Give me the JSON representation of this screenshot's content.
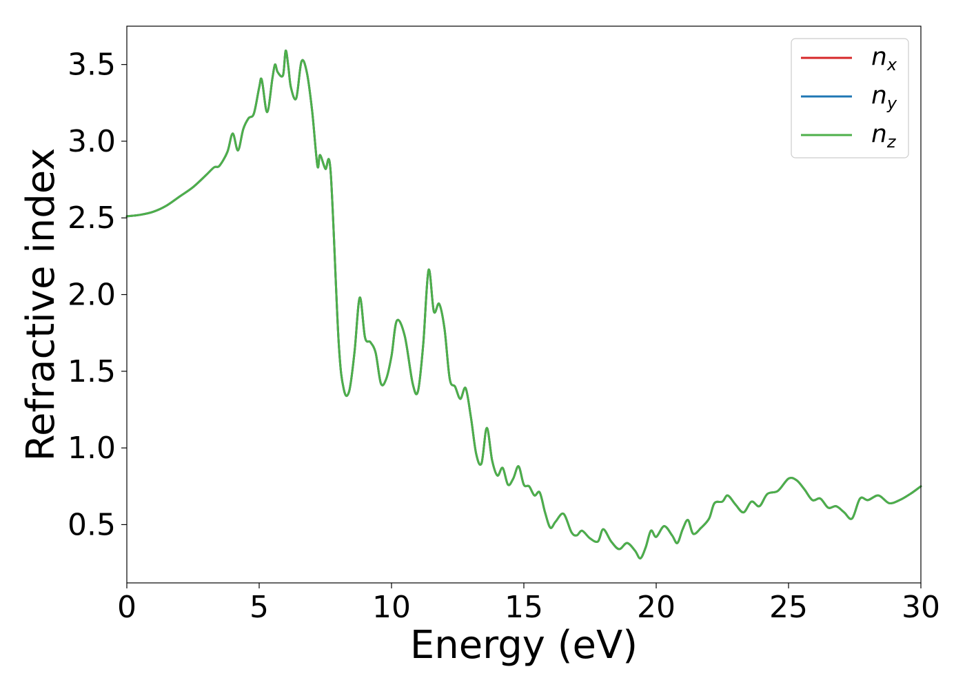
{
  "chart_data": {
    "type": "line",
    "title": "",
    "xlabel": "Energy (eV)",
    "ylabel": "Refractive index",
    "xlim": [
      0,
      30
    ],
    "ylim": [
      0.12,
      3.75
    ],
    "xticks": [
      "0",
      "5",
      "10",
      "15",
      "20",
      "25",
      "30"
    ],
    "yticks": [
      "0.5",
      "1.0",
      "1.5",
      "2.0",
      "2.5",
      "3.0",
      "3.5"
    ],
    "grid": false,
    "legend_position": "top-right",
    "x": [
      0,
      0.5,
      1.0,
      1.5,
      2.0,
      2.5,
      3.0,
      3.3,
      3.5,
      3.8,
      4.0,
      4.2,
      4.4,
      4.6,
      4.8,
      5.0,
      5.1,
      5.3,
      5.5,
      5.6,
      5.7,
      5.9,
      6.0,
      6.1,
      6.2,
      6.4,
      6.6,
      6.8,
      7.0,
      7.2,
      7.3,
      7.5,
      7.7,
      8.0,
      8.2,
      8.4,
      8.6,
      8.8,
      9.0,
      9.2,
      9.4,
      9.6,
      9.8,
      10.0,
      10.2,
      10.5,
      10.8,
      11.0,
      11.2,
      11.4,
      11.6,
      11.8,
      12.0,
      12.2,
      12.4,
      12.6,
      12.8,
      13.0,
      13.2,
      13.4,
      13.6,
      13.8,
      14.0,
      14.2,
      14.4,
      14.6,
      14.8,
      15.0,
      15.2,
      15.4,
      15.6,
      15.8,
      16.0,
      16.2,
      16.5,
      16.8,
      17.0,
      17.2,
      17.5,
      17.8,
      18.0,
      18.3,
      18.6,
      18.9,
      19.2,
      19.4,
      19.6,
      19.8,
      20.0,
      20.3,
      20.6,
      20.8,
      21.0,
      21.2,
      21.4,
      21.7,
      22.0,
      22.2,
      22.5,
      22.7,
      23.0,
      23.3,
      23.6,
      23.9,
      24.2,
      24.6,
      25.0,
      25.3,
      25.6,
      25.9,
      26.2,
      26.5,
      26.8,
      27.1,
      27.4,
      27.7,
      28.0,
      28.4,
      28.8,
      29.2,
      29.6,
      30.0
    ],
    "series": [
      {
        "name": "n_x",
        "color": "#d62728",
        "values": [
          2.51,
          2.52,
          2.54,
          2.58,
          2.64,
          2.7,
          2.78,
          2.83,
          2.84,
          2.93,
          3.05,
          2.94,
          3.08,
          3.15,
          3.18,
          3.35,
          3.4,
          3.19,
          3.41,
          3.5,
          3.45,
          3.43,
          3.59,
          3.49,
          3.35,
          3.28,
          3.52,
          3.45,
          3.2,
          2.84,
          2.91,
          2.82,
          2.8,
          1.7,
          1.38,
          1.37,
          1.62,
          1.98,
          1.72,
          1.69,
          1.62,
          1.42,
          1.45,
          1.6,
          1.83,
          1.73,
          1.42,
          1.37,
          1.68,
          2.16,
          1.89,
          1.94,
          1.78,
          1.45,
          1.4,
          1.32,
          1.39,
          1.2,
          0.96,
          0.9,
          1.13,
          0.92,
          0.82,
          0.87,
          0.76,
          0.8,
          0.88,
          0.76,
          0.75,
          0.69,
          0.71,
          0.58,
          0.48,
          0.52,
          0.57,
          0.45,
          0.43,
          0.46,
          0.41,
          0.39,
          0.47,
          0.39,
          0.34,
          0.38,
          0.33,
          0.28,
          0.35,
          0.46,
          0.42,
          0.49,
          0.43,
          0.38,
          0.47,
          0.53,
          0.44,
          0.48,
          0.54,
          0.64,
          0.65,
          0.69,
          0.63,
          0.58,
          0.65,
          0.62,
          0.7,
          0.72,
          0.8,
          0.79,
          0.73,
          0.66,
          0.67,
          0.61,
          0.62,
          0.58,
          0.54,
          0.67,
          0.66,
          0.69,
          0.64,
          0.66,
          0.7,
          0.75
        ]
      },
      {
        "name": "n_y",
        "color": "#1f77b4",
        "values": [
          2.51,
          2.52,
          2.54,
          2.58,
          2.64,
          2.7,
          2.78,
          2.83,
          2.84,
          2.93,
          3.05,
          2.94,
          3.08,
          3.15,
          3.18,
          3.35,
          3.4,
          3.19,
          3.41,
          3.5,
          3.45,
          3.43,
          3.59,
          3.49,
          3.35,
          3.28,
          3.52,
          3.45,
          3.2,
          2.84,
          2.91,
          2.82,
          2.8,
          1.7,
          1.38,
          1.37,
          1.62,
          1.98,
          1.72,
          1.69,
          1.62,
          1.42,
          1.45,
          1.6,
          1.83,
          1.73,
          1.42,
          1.37,
          1.68,
          2.16,
          1.89,
          1.94,
          1.78,
          1.45,
          1.4,
          1.32,
          1.39,
          1.2,
          0.96,
          0.9,
          1.13,
          0.92,
          0.82,
          0.87,
          0.76,
          0.8,
          0.88,
          0.76,
          0.75,
          0.69,
          0.71,
          0.58,
          0.48,
          0.52,
          0.57,
          0.45,
          0.43,
          0.46,
          0.41,
          0.39,
          0.47,
          0.39,
          0.34,
          0.38,
          0.33,
          0.28,
          0.35,
          0.46,
          0.42,
          0.49,
          0.43,
          0.38,
          0.47,
          0.53,
          0.44,
          0.48,
          0.54,
          0.64,
          0.65,
          0.69,
          0.63,
          0.58,
          0.65,
          0.62,
          0.7,
          0.72,
          0.8,
          0.79,
          0.73,
          0.66,
          0.67,
          0.61,
          0.62,
          0.58,
          0.54,
          0.67,
          0.66,
          0.69,
          0.64,
          0.66,
          0.7,
          0.75
        ]
      },
      {
        "name": "n_z",
        "color": "#4daf4a",
        "values": [
          2.51,
          2.52,
          2.54,
          2.58,
          2.64,
          2.7,
          2.78,
          2.83,
          2.84,
          2.93,
          3.05,
          2.94,
          3.08,
          3.15,
          3.18,
          3.35,
          3.4,
          3.19,
          3.41,
          3.5,
          3.45,
          3.43,
          3.59,
          3.49,
          3.35,
          3.28,
          3.52,
          3.45,
          3.2,
          2.84,
          2.91,
          2.82,
          2.8,
          1.7,
          1.38,
          1.37,
          1.62,
          1.98,
          1.72,
          1.69,
          1.62,
          1.42,
          1.45,
          1.6,
          1.83,
          1.73,
          1.42,
          1.37,
          1.68,
          2.16,
          1.89,
          1.94,
          1.78,
          1.45,
          1.4,
          1.32,
          1.39,
          1.2,
          0.96,
          0.9,
          1.13,
          0.92,
          0.82,
          0.87,
          0.76,
          0.8,
          0.88,
          0.76,
          0.75,
          0.69,
          0.71,
          0.58,
          0.48,
          0.52,
          0.57,
          0.45,
          0.43,
          0.46,
          0.41,
          0.39,
          0.47,
          0.39,
          0.34,
          0.38,
          0.33,
          0.28,
          0.35,
          0.46,
          0.42,
          0.49,
          0.43,
          0.38,
          0.47,
          0.53,
          0.44,
          0.48,
          0.54,
          0.64,
          0.65,
          0.69,
          0.63,
          0.58,
          0.65,
          0.62,
          0.7,
          0.72,
          0.8,
          0.79,
          0.73,
          0.66,
          0.67,
          0.61,
          0.62,
          0.58,
          0.54,
          0.67,
          0.66,
          0.69,
          0.64,
          0.66,
          0.7,
          0.75
        ]
      }
    ],
    "legend": [
      {
        "base": "n",
        "sub": "x",
        "color": "#d62728"
      },
      {
        "base": "n",
        "sub": "y",
        "color": "#1f77b4"
      },
      {
        "base": "n",
        "sub": "z",
        "color": "#4daf4a"
      }
    ]
  }
}
